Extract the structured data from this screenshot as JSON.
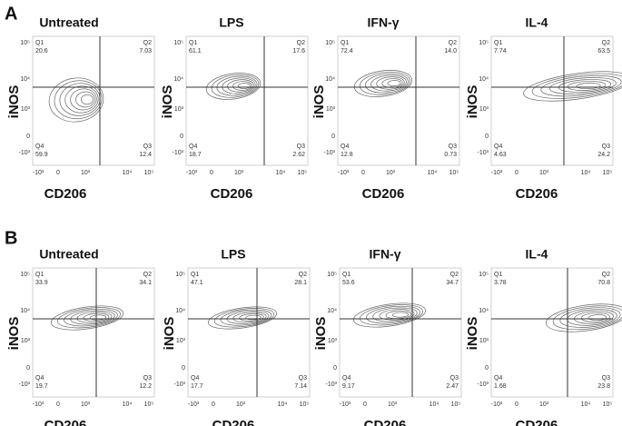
{
  "figure": {
    "y_axis_label": "iNOS",
    "x_axis_label": "CD206",
    "y_tick_labels": [
      "10⁵",
      "10⁴",
      "10³",
      "0",
      "-10³"
    ],
    "x_tick_labels": [
      "-10³",
      "0",
      "10³",
      "10⁴",
      "10⁵"
    ],
    "rows": [
      {
        "label": "A",
        "panels": [
          {
            "title": "Untreated",
            "quadrants": [
              {
                "name": "Q1",
                "value": "20.6"
              },
              {
                "name": "Q2",
                "value": "7.03"
              },
              {
                "name": "Q3",
                "value": "12.4"
              },
              {
                "name": "Q4",
                "value": "59.9"
              }
            ]
          },
          {
            "title": "LPS",
            "quadrants": [
              {
                "name": "Q1",
                "value": "61.1"
              },
              {
                "name": "Q2",
                "value": "17.6"
              },
              {
                "name": "Q3",
                "value": "2.62"
              },
              {
                "name": "Q4",
                "value": "18.7"
              }
            ]
          },
          {
            "title": "IFN-γ",
            "quadrants": [
              {
                "name": "Q1",
                "value": "72.4"
              },
              {
                "name": "Q2",
                "value": "14.0"
              },
              {
                "name": "Q3",
                "value": "0.73"
              },
              {
                "name": "Q4",
                "value": "12.8"
              }
            ]
          },
          {
            "title": "IL-4",
            "quadrants": [
              {
                "name": "Q1",
                "value": "7.74"
              },
              {
                "name": "Q2",
                "value": "63.5"
              },
              {
                "name": "Q3",
                "value": "24.2"
              },
              {
                "name": "Q4",
                "value": "4.63"
              }
            ]
          }
        ]
      },
      {
        "label": "B",
        "panels": [
          {
            "title": "Untreated",
            "quadrants": [
              {
                "name": "Q1",
                "value": "33.9"
              },
              {
                "name": "Q2",
                "value": "34.1"
              },
              {
                "name": "Q3",
                "value": "12.2"
              },
              {
                "name": "Q4",
                "value": "19.7"
              }
            ]
          },
          {
            "title": "LPS",
            "quadrants": [
              {
                "name": "Q1",
                "value": "47.1"
              },
              {
                "name": "Q2",
                "value": "28.1"
              },
              {
                "name": "Q3",
                "value": "7.14"
              },
              {
                "name": "Q4",
                "value": "17.7"
              }
            ]
          },
          {
            "title": "IFN-γ",
            "quadrants": [
              {
                "name": "Q1",
                "value": "53.6"
              },
              {
                "name": "Q2",
                "value": "34.7"
              },
              {
                "name": "Q3",
                "value": "2.47"
              },
              {
                "name": "Q4",
                "value": "9.17"
              }
            ]
          },
          {
            "title": "IL-4",
            "quadrants": [
              {
                "name": "Q1",
                "value": "3.78"
              },
              {
                "name": "Q2",
                "value": "70.8"
              },
              {
                "name": "Q3",
                "value": "23.8"
              },
              {
                "name": "Q4",
                "value": "1.68"
              }
            ]
          }
        ]
      }
    ]
  }
}
